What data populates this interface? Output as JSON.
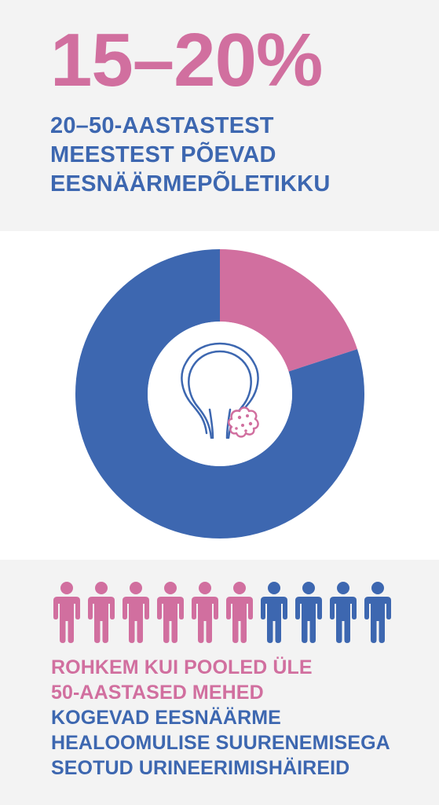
{
  "header": {
    "stat": "15–20%",
    "lines": [
      "20–50-AASTASTEST",
      "MEESTEST PÕEVAD",
      "EESNÄÄRMEPÕLETIKKU"
    ]
  },
  "chart_data": {
    "type": "pie",
    "values": [
      20,
      80
    ],
    "colors": [
      "#d16f9f",
      "#3d67b0"
    ]
  },
  "center_icon": "prostate-icon",
  "people": {
    "count": 10,
    "highlighted": 6,
    "icon": "person-icon",
    "highlight_color": "#d16f9f",
    "base_color": "#3d67b0"
  },
  "footer": {
    "pink_lines": [
      "ROHKEM KUI POOLED ÜLE",
      "50-AASTASED MEHED"
    ],
    "blue_lines": [
      "KOGEVAD EESNÄÄRME",
      "HEALOOMULISE SUURENEMISEGA",
      "SEOTUD URINEERIMISHÄIREID"
    ]
  },
  "colors": {
    "pink": "#d16f9f",
    "blue": "#3d67b0",
    "background": "#f3f3f3"
  }
}
